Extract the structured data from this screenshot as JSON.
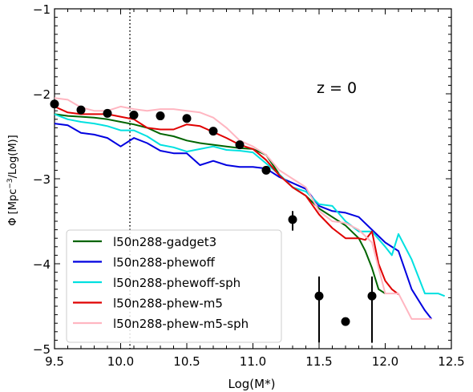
{
  "chart_data": {
    "type": "line",
    "xlabel": "Log(M*)",
    "ylabel": "Φ [Mpc⁻³/Log(M)]",
    "xlim": [
      9.5,
      12.5
    ],
    "ylim": [
      -5,
      -1
    ],
    "x_ticks": [
      "9.5",
      "10.0",
      "10.5",
      "11.0",
      "11.5",
      "12.0",
      "12.5"
    ],
    "y_ticks": [
      "−5",
      "−4",
      "−3",
      "−2",
      "−1"
    ],
    "annotation": "z = 0",
    "vline_x": 10.07,
    "grid": false,
    "legend_position": "lower-left",
    "series": [
      {
        "name": "l50n288-gadget3",
        "color": "#006400",
        "x": [
          9.5,
          9.6,
          9.7,
          9.8,
          9.9,
          10.0,
          10.1,
          10.2,
          10.3,
          10.4,
          10.5,
          10.6,
          10.7,
          10.8,
          10.9,
          11.0,
          11.1,
          11.2,
          11.3,
          11.4,
          11.5,
          11.6,
          11.7,
          11.8,
          11.85,
          11.9,
          11.95,
          12.0
        ],
        "y": [
          -2.24,
          -2.26,
          -2.27,
          -2.28,
          -2.3,
          -2.33,
          -2.36,
          -2.4,
          -2.47,
          -2.5,
          -2.55,
          -2.58,
          -2.6,
          -2.62,
          -2.64,
          -2.65,
          -2.72,
          -2.95,
          -3.1,
          -3.2,
          -3.35,
          -3.45,
          -3.55,
          -3.7,
          -3.85,
          -4.05,
          -4.3,
          -4.35
        ]
      },
      {
        "name": "l50n288-phewoff",
        "color": "#0000e0",
        "x": [
          9.5,
          9.6,
          9.7,
          9.8,
          9.9,
          10.0,
          10.1,
          10.2,
          10.3,
          10.4,
          10.5,
          10.6,
          10.7,
          10.8,
          10.9,
          11.0,
          11.1,
          11.2,
          11.3,
          11.4,
          11.5,
          11.6,
          11.7,
          11.8,
          11.9,
          12.0,
          12.1,
          12.2,
          12.3,
          12.35
        ],
        "y": [
          -2.35,
          -2.37,
          -2.46,
          -2.48,
          -2.52,
          -2.62,
          -2.52,
          -2.58,
          -2.67,
          -2.7,
          -2.7,
          -2.84,
          -2.79,
          -2.84,
          -2.86,
          -2.86,
          -2.88,
          -2.98,
          -3.05,
          -3.12,
          -3.32,
          -3.38,
          -3.4,
          -3.45,
          -3.6,
          -3.75,
          -3.85,
          -4.3,
          -4.55,
          -4.65
        ]
      },
      {
        "name": "l50n288-phewoff-sph",
        "color": "#00e0e0",
        "x": [
          9.5,
          9.6,
          9.7,
          9.8,
          9.9,
          10.0,
          10.1,
          10.2,
          10.3,
          10.4,
          10.5,
          10.6,
          10.7,
          10.8,
          10.9,
          11.0,
          11.1,
          11.2,
          11.3,
          11.4,
          11.5,
          11.6,
          11.7,
          11.8,
          11.9,
          12.0,
          12.05,
          12.1,
          12.2,
          12.3,
          12.4,
          12.45
        ],
        "y": [
          -2.24,
          -2.3,
          -2.33,
          -2.35,
          -2.38,
          -2.43,
          -2.43,
          -2.5,
          -2.6,
          -2.63,
          -2.68,
          -2.65,
          -2.62,
          -2.66,
          -2.67,
          -2.69,
          -2.82,
          -2.95,
          -3.1,
          -3.15,
          -3.3,
          -3.32,
          -3.5,
          -3.62,
          -3.62,
          -3.8,
          -3.9,
          -3.65,
          -3.95,
          -4.35,
          -4.35,
          -4.38
        ]
      },
      {
        "name": "l50n288-phew-m5",
        "color": "#e00000",
        "x": [
          9.5,
          9.6,
          9.7,
          9.8,
          9.9,
          10.0,
          10.1,
          10.2,
          10.3,
          10.4,
          10.5,
          10.6,
          10.7,
          10.8,
          10.9,
          11.0,
          11.1,
          11.2,
          11.3,
          11.4,
          11.5,
          11.6,
          11.7,
          11.8,
          11.85,
          11.9,
          11.95,
          12.0,
          12.05,
          12.1
        ],
        "y": [
          -2.15,
          -2.22,
          -2.24,
          -2.24,
          -2.24,
          -2.27,
          -2.3,
          -2.4,
          -2.42,
          -2.42,
          -2.36,
          -2.38,
          -2.45,
          -2.52,
          -2.6,
          -2.65,
          -2.78,
          -2.96,
          -3.1,
          -3.2,
          -3.42,
          -3.58,
          -3.7,
          -3.7,
          -3.72,
          -3.62,
          -4.0,
          -4.2,
          -4.3,
          -4.36
        ]
      },
      {
        "name": "l50n288-phew-m5-sph",
        "color": "#ffb6c1",
        "x": [
          9.5,
          9.6,
          9.7,
          9.8,
          9.9,
          10.0,
          10.1,
          10.2,
          10.3,
          10.4,
          10.5,
          10.6,
          10.7,
          10.8,
          10.9,
          11.0,
          11.1,
          11.2,
          11.3,
          11.4,
          11.5,
          11.6,
          11.7,
          11.8,
          11.9,
          12.0,
          12.1,
          12.2,
          12.3,
          12.35
        ],
        "y": [
          -2.05,
          -2.07,
          -2.16,
          -2.2,
          -2.2,
          -2.15,
          -2.18,
          -2.2,
          -2.18,
          -2.18,
          -2.2,
          -2.22,
          -2.28,
          -2.4,
          -2.55,
          -2.62,
          -2.72,
          -2.9,
          -3.0,
          -3.1,
          -3.38,
          -3.5,
          -3.52,
          -3.6,
          -3.75,
          -4.35,
          -4.35,
          -4.65,
          -4.65,
          -4.65
        ]
      }
    ],
    "observations": {
      "x": [
        9.5,
        9.7,
        9.9,
        10.1,
        10.3,
        10.5,
        10.7,
        10.9,
        11.1,
        11.3,
        11.5,
        11.7,
        11.9
      ],
      "y": [
        -2.12,
        -2.19,
        -2.23,
        -2.25,
        -2.26,
        -2.29,
        -2.44,
        -2.6,
        -2.9,
        -3.48,
        -4.38,
        -4.68,
        -4.38
      ],
      "err_low": [
        0,
        0,
        0,
        0,
        0,
        0,
        0,
        0,
        0,
        0.13,
        0.55,
        0,
        0.55
      ],
      "err_high": [
        0,
        0,
        0,
        0,
        0,
        0,
        0,
        0,
        0,
        0.1,
        0.23,
        0,
        0.23
      ]
    }
  }
}
